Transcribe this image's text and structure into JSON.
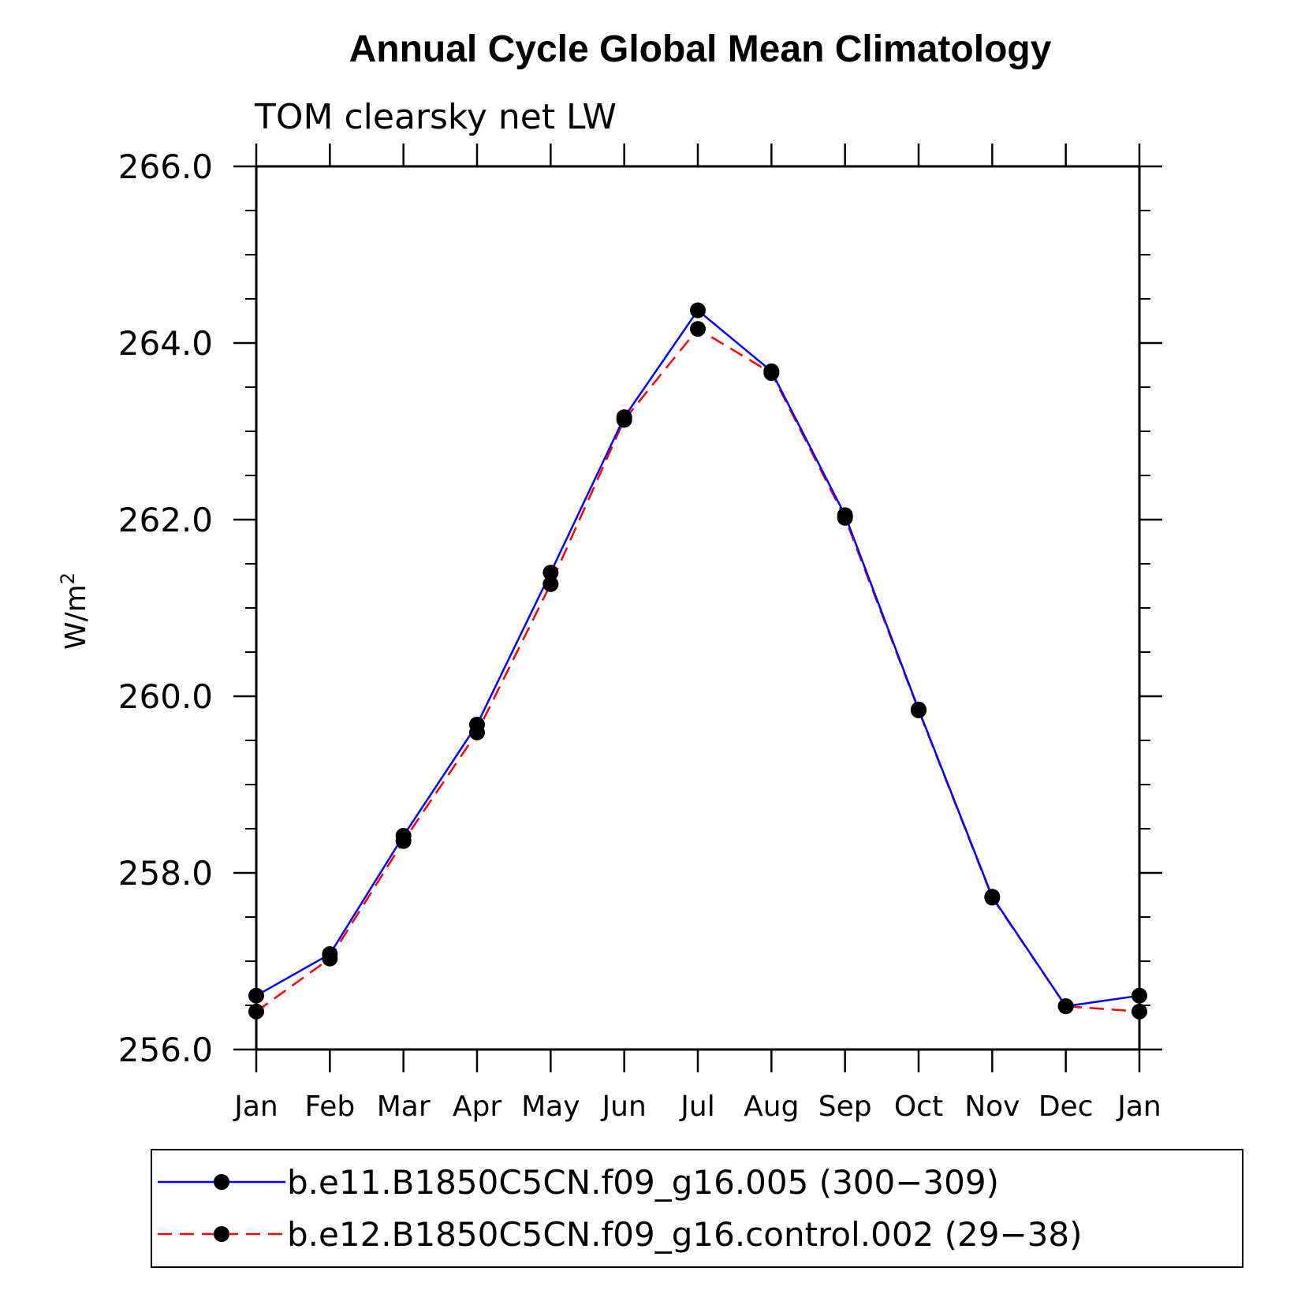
{
  "chart_data": {
    "type": "line",
    "title": "Annual Cycle Global Mean Climatology",
    "subtitle": "TOM clearsky net LW",
    "ylabel": "W/m",
    "ylabel_superscript": "2",
    "xlabel": "",
    "categories": [
      "Jan",
      "Feb",
      "Mar",
      "Apr",
      "May",
      "Jun",
      "Jul",
      "Aug",
      "Sep",
      "Oct",
      "Nov",
      "Dec",
      "Jan"
    ],
    "ylim": [
      256.0,
      266.0
    ],
    "y_major_ticks": [
      "256.0",
      "258.0",
      "260.0",
      "262.0",
      "264.0",
      "266.0"
    ],
    "y_major_step": 2.0,
    "y_minor_step": 0.5,
    "grid": false,
    "legend_position": "bottom",
    "series": [
      {
        "name": "b.e11.B1850C5CN.f09_g16.005 (300-309)",
        "legend_label": "b.e11.B1850C5CN.f09_g16.005 (300−309)",
        "color": "#0000ff",
        "line_style": "solid",
        "marker": "filled-circle",
        "marker_color": "#000000",
        "values": [
          256.61,
          257.08,
          258.42,
          259.68,
          261.4,
          263.16,
          264.37,
          263.68,
          262.05,
          259.85,
          257.73,
          256.49,
          256.61
        ]
      },
      {
        "name": "b.e12.B1850C5CN.f09_g16.control.002 (29-38)",
        "legend_label": "b.e12.B1850C5CN.f09_g16.control.002 (29−38)",
        "color": "#ff0000",
        "line_style": "dashed",
        "marker": "filled-circle",
        "marker_color": "#000000",
        "values": [
          256.43,
          257.03,
          258.36,
          259.59,
          261.27,
          263.13,
          264.16,
          263.66,
          262.02,
          259.84,
          257.72,
          256.49,
          256.43
        ]
      }
    ]
  }
}
